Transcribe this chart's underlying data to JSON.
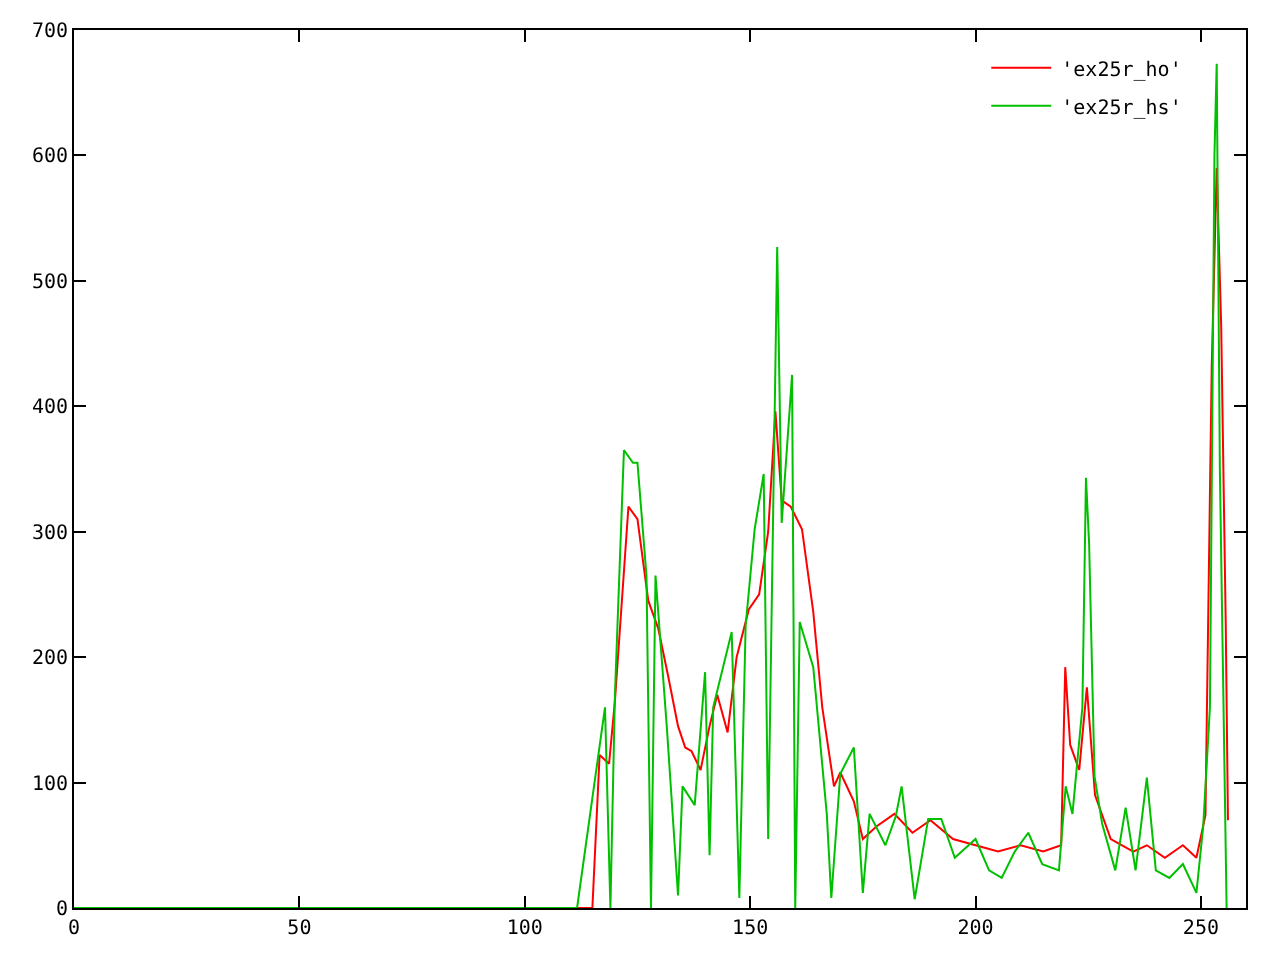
{
  "chart_data": {
    "type": "line",
    "xlim": [
      0,
      260
    ],
    "ylim": [
      0,
      700
    ],
    "xticks": [
      0,
      50,
      100,
      150,
      200,
      250
    ],
    "yticks": [
      0,
      100,
      200,
      300,
      400,
      500,
      600,
      700
    ],
    "grid": false,
    "legend": "top right",
    "series": [
      {
        "name": "'ex25r_ho'",
        "color": "#ff0000",
        "x": [
          0,
          115,
          116.6,
          118.7,
          120,
          123,
          125,
          127.4,
          129.6,
          131.8,
          134,
          135.6,
          137,
          139,
          141,
          142.7,
          145,
          147,
          149.7,
          152,
          154,
          155.6,
          157,
          159,
          161.5,
          164,
          166,
          168.6,
          170,
          173,
          175,
          178,
          182,
          186,
          190,
          195,
          200,
          205,
          210,
          215,
          219,
          219.9,
          221,
          223,
          224.7,
          226.5,
          230,
          235,
          238,
          242,
          246,
          249,
          251,
          252.4,
          253.5,
          254.5,
          255.5,
          256
        ],
        "values": [
          0,
          0,
          122,
          115,
          165,
          320,
          310,
          245,
          223,
          185,
          145,
          128,
          125,
          110,
          145,
          170,
          140,
          200,
          238,
          250,
          300,
          396,
          325,
          320,
          302,
          236,
          160,
          97,
          108,
          85,
          55,
          65,
          75,
          60,
          70,
          55,
          50,
          45,
          50,
          45,
          50,
          192,
          130,
          110,
          176,
          90,
          55,
          45,
          50,
          40,
          50,
          40,
          74,
          432,
          590,
          464,
          228,
          70
        ]
      },
      {
        "name": "'ex25r_hs'",
        "color": "#00c000",
        "x": [
          0,
          111.6,
          117.8,
          119,
          120,
          122,
          124,
          125,
          127,
          128,
          129,
          131.5,
          134,
          135,
          137.7,
          140,
          141,
          141.8,
          145.9,
          147.6,
          149,
          151,
          153,
          154,
          156,
          157,
          159.3,
          160,
          161,
          164,
          167,
          168,
          170,
          173,
          175,
          176.5,
          180,
          182.3,
          183.6,
          186.5,
          189.5,
          192.4,
          195.4,
          200,
          203,
          205.8,
          208.7,
          211.7,
          214.8,
          218.5,
          220,
          221.5,
          223.7,
          224.5,
          225.2,
          226.4,
          228.1,
          231,
          233.3,
          235.5,
          238,
          240,
          243,
          246,
          249,
          250.5,
          252,
          253,
          253.5,
          254.2,
          255.7
        ],
        "values": [
          0,
          0,
          160,
          0,
          170,
          365,
          355,
          355,
          265,
          0,
          265,
          145,
          10,
          97,
          82,
          188,
          42,
          160,
          220,
          8,
          225,
          302,
          346,
          55,
          527,
          307,
          425,
          0,
          228,
          192,
          75,
          8,
          107,
          128,
          12,
          75,
          50,
          73,
          97,
          7,
          71,
          71,
          40,
          55,
          30,
          24,
          45,
          60,
          35,
          30,
          97,
          75,
          160,
          343,
          290,
          105,
          67,
          30,
          80,
          30,
          104,
          30,
          24,
          35,
          12,
          65,
          160,
          600,
          673,
          350,
          0
        ]
      }
    ]
  }
}
